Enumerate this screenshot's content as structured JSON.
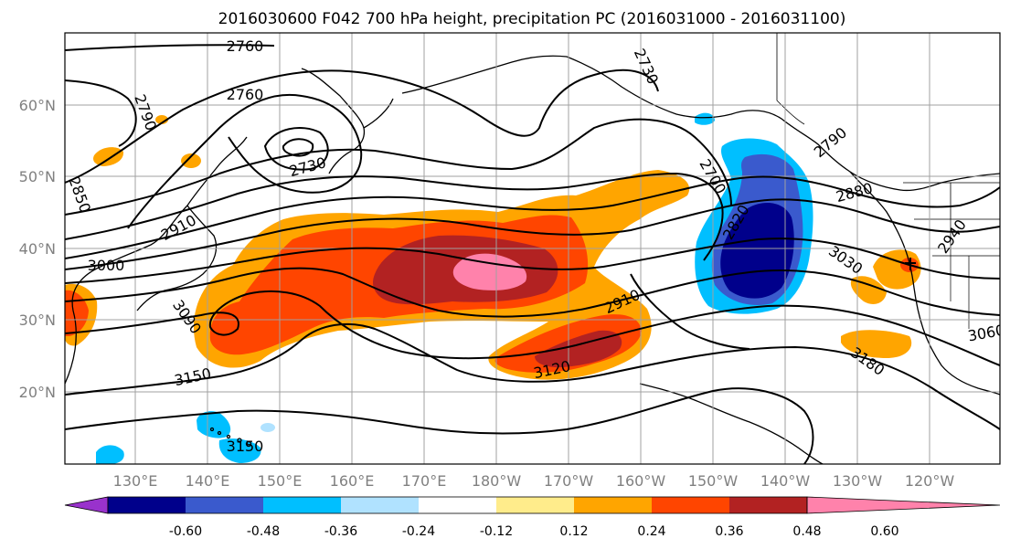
{
  "title": "2016030600 F042 700 hPa height, precipitation PC (2016031000 - 2016031100)",
  "map": {
    "projection": "PlateCarree",
    "lon_labels": [
      "130°E",
      "140°E",
      "150°E",
      "160°E",
      "170°E",
      "180°W",
      "170°W",
      "160°W",
      "150°W",
      "140°W",
      "130°W",
      "120°W"
    ],
    "lat_labels": [
      "60°N",
      "50°N",
      "40°N",
      "30°N",
      "20°N"
    ],
    "contour_labels": [
      "2760",
      "2760",
      "2790",
      "2730",
      "2850",
      "2910",
      "3000",
      "3090",
      "3150",
      "3150",
      "2730",
      "2700",
      "2790",
      "2880",
      "3030",
      "2940",
      "3060",
      "2910",
      "3120",
      "3180",
      "2820"
    ],
    "contour_color": "#000000",
    "coastline_color": "#000000"
  },
  "colorbar": {
    "orientation": "horizontal",
    "extend": "both",
    "colors": [
      "#9932cc",
      "#00008b",
      "#3a5acd",
      "#00bfff",
      "#b0e2ff",
      "#ffffff",
      "#ffec8b",
      "#ffa500",
      "#ff4500",
      "#b22222",
      "#ff82ab"
    ],
    "tick_labels": [
      "-0.60",
      "-0.48",
      "-0.36",
      "-0.24",
      "-0.12",
      "0.12",
      "0.24",
      "0.36",
      "0.48",
      "0.60"
    ]
  }
}
